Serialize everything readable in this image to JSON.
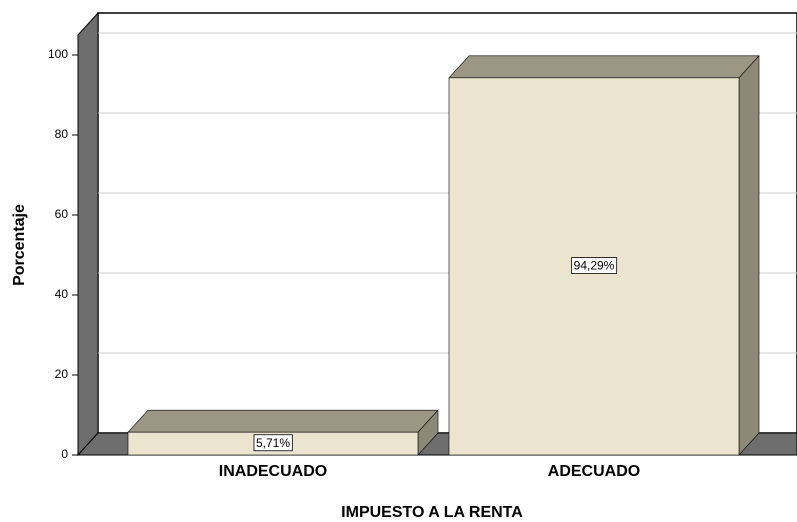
{
  "chart_data": {
    "type": "bar3d",
    "x_label": "IMPUESTO A LA RENTA",
    "y_label": "Porcentaje",
    "categories": [
      "INADECUADO",
      "ADECUADO"
    ],
    "values": [
      5.71,
      94.29
    ],
    "value_labels": [
      "5,71%",
      "94,29%"
    ],
    "color": "#ebe5cf",
    "ylim": [
      0,
      100
    ],
    "yticks": [
      0,
      20,
      40,
      60,
      80,
      100
    ],
    "grid": true
  }
}
